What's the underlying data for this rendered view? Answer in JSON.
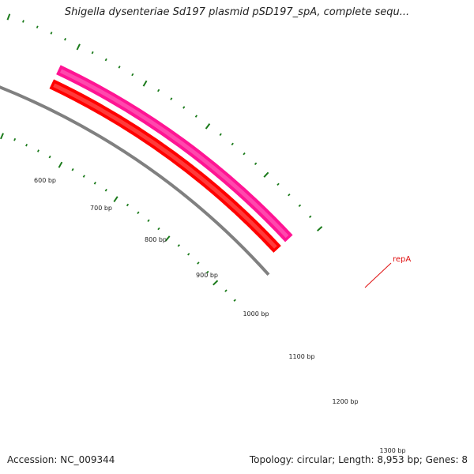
{
  "title": "Shigella dysenteriae Sd197 plasmid pSD197_spA, complete sequ...",
  "footer": {
    "accession": "Accession: NC_009344",
    "summary": "Topology: circular; Length: 8,953 bp; Genes: 8"
  },
  "colors": {
    "backbone": "#808080",
    "gene_forward": "#ff1493",
    "gene_reverse": "#ff0000",
    "ticks": "#1a7a1a",
    "label": "#e01010"
  },
  "tick_labels": [
    "600 bp",
    "700 bp",
    "800 bp",
    "900 bp",
    "1000 bp",
    "1100 bp",
    "1200 bp",
    "1300 bp"
  ],
  "genes": [
    {
      "name": "repA",
      "strand": "forward",
      "color": "#ff1493"
    },
    {
      "name": "",
      "strand": "reverse",
      "color": "#ff0000"
    }
  ]
}
